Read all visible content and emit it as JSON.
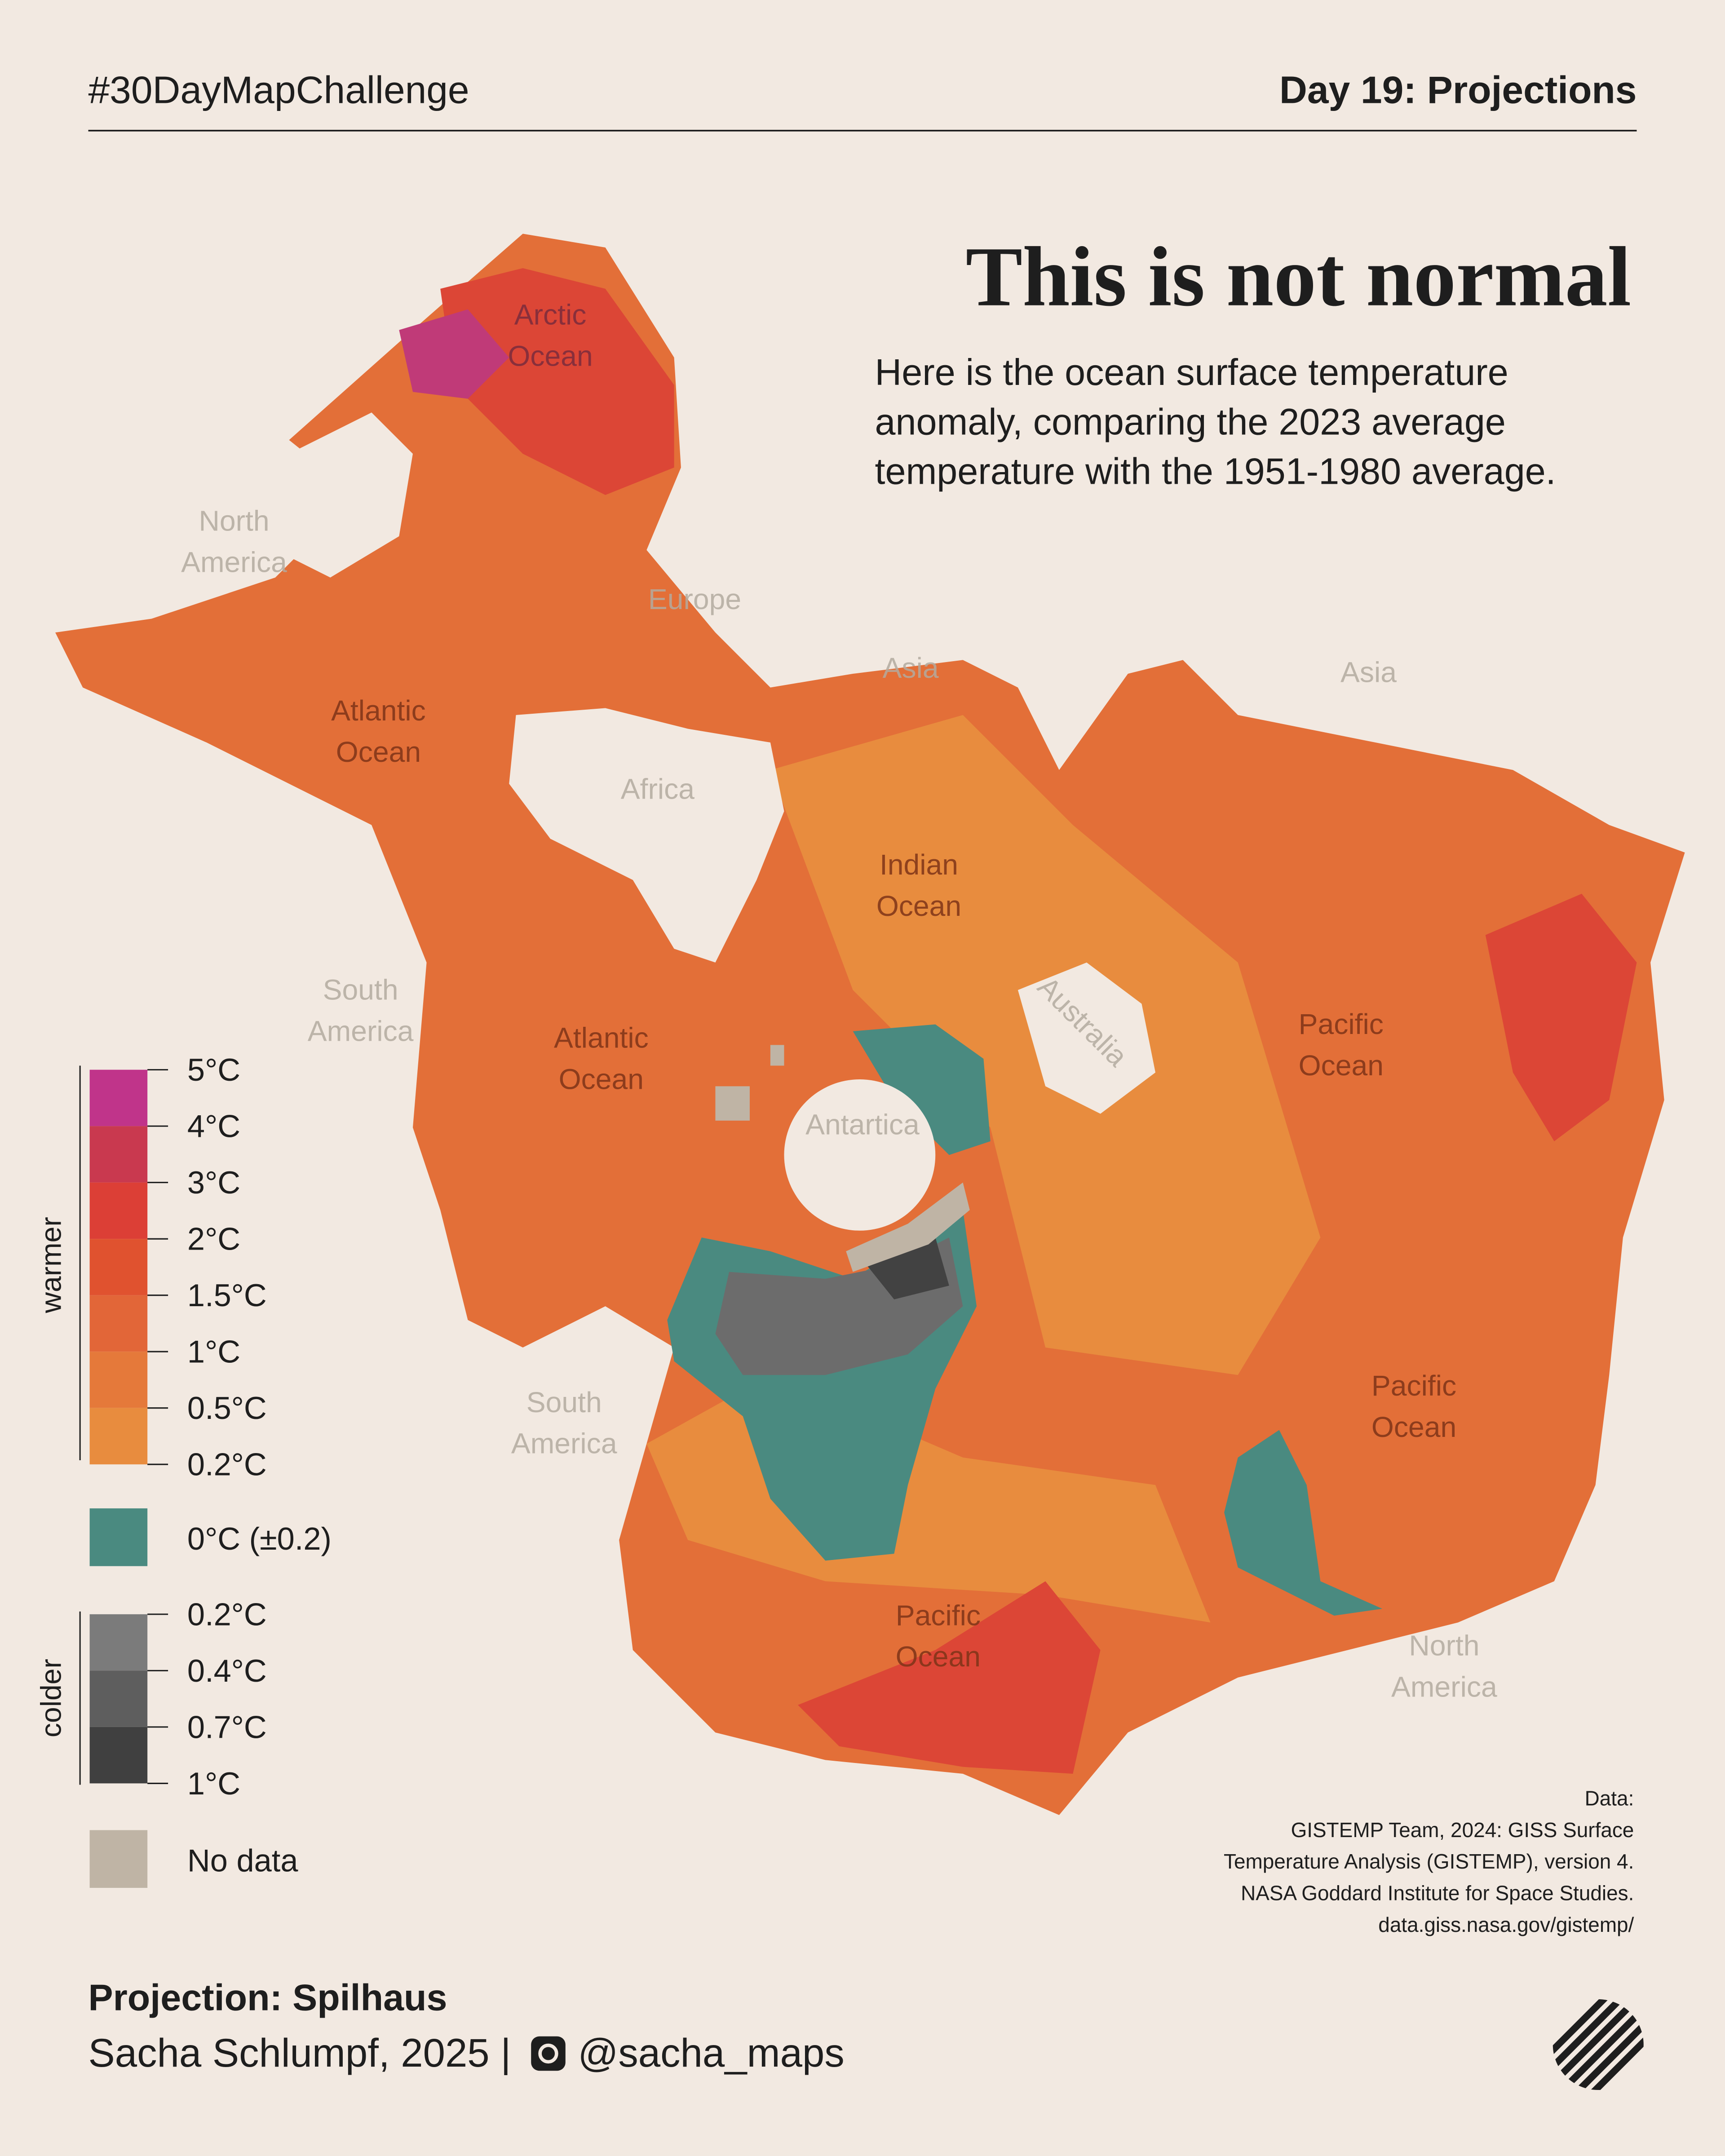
{
  "header": {
    "hashtag": "#30DayMapChallenge",
    "day": "Day 19: Projections"
  },
  "title": "This is not normal",
  "subtitle": [
    "Here is the ocean surface temperature",
    "anomaly, comparing the 2023 average",
    "temperature with the 1951-1980 average."
  ],
  "map_labels": [
    {
      "lines": [
        "Arctic",
        "Ocean"
      ]
    },
    {
      "lines": [
        "North",
        "America"
      ]
    },
    {
      "lines": [
        "Europe"
      ]
    },
    {
      "lines": [
        "Atlantic",
        "Ocean"
      ]
    },
    {
      "lines": [
        "Asia"
      ]
    },
    {
      "lines": [
        "Africa"
      ]
    },
    {
      "lines": [
        "Asia"
      ]
    },
    {
      "lines": [
        "Indian",
        "Ocean"
      ]
    },
    {
      "lines": [
        "South",
        "America"
      ]
    },
    {
      "lines": [
        "Atlantic",
        "Ocean"
      ]
    },
    {
      "lines": [
        "Australia"
      ]
    },
    {
      "lines": [
        "Pacific",
        "Ocean"
      ]
    },
    {
      "lines": [
        "Antartica"
      ]
    },
    {
      "lines": [
        "South",
        "America"
      ]
    },
    {
      "lines": [
        "Pacific",
        "Ocean"
      ]
    },
    {
      "lines": [
        "Pacific",
        "Ocean"
      ]
    },
    {
      "lines": [
        "North",
        "America"
      ]
    }
  ],
  "legend": {
    "warmer": {
      "label": "warmer",
      "ticks": [
        "5°C",
        "4°C",
        "3°C",
        "2°C",
        "1.5°C",
        "1°C",
        "0.5°C",
        "0.2°C"
      ]
    },
    "neutral": "0°C (±0.2)",
    "colder": {
      "label": "colder",
      "ticks": [
        "0.2°C",
        "0.4°C",
        "0.7°C",
        "1°C"
      ]
    },
    "no_data": "No data"
  },
  "source": [
    "Data:",
    "GISTEMP Team, 2024: GISS Surface",
    "Temperature Analysis (GISTEMP), version 4.",
    "NASA Goddard Institute for Space Studies.",
    "data.giss.nasa.gov/gistemp/"
  ],
  "footer": {
    "projection": "Projection: Spilhaus",
    "author": "Sacha Schlumpf, 2025 |",
    "handle": "@sacha_maps"
  }
}
